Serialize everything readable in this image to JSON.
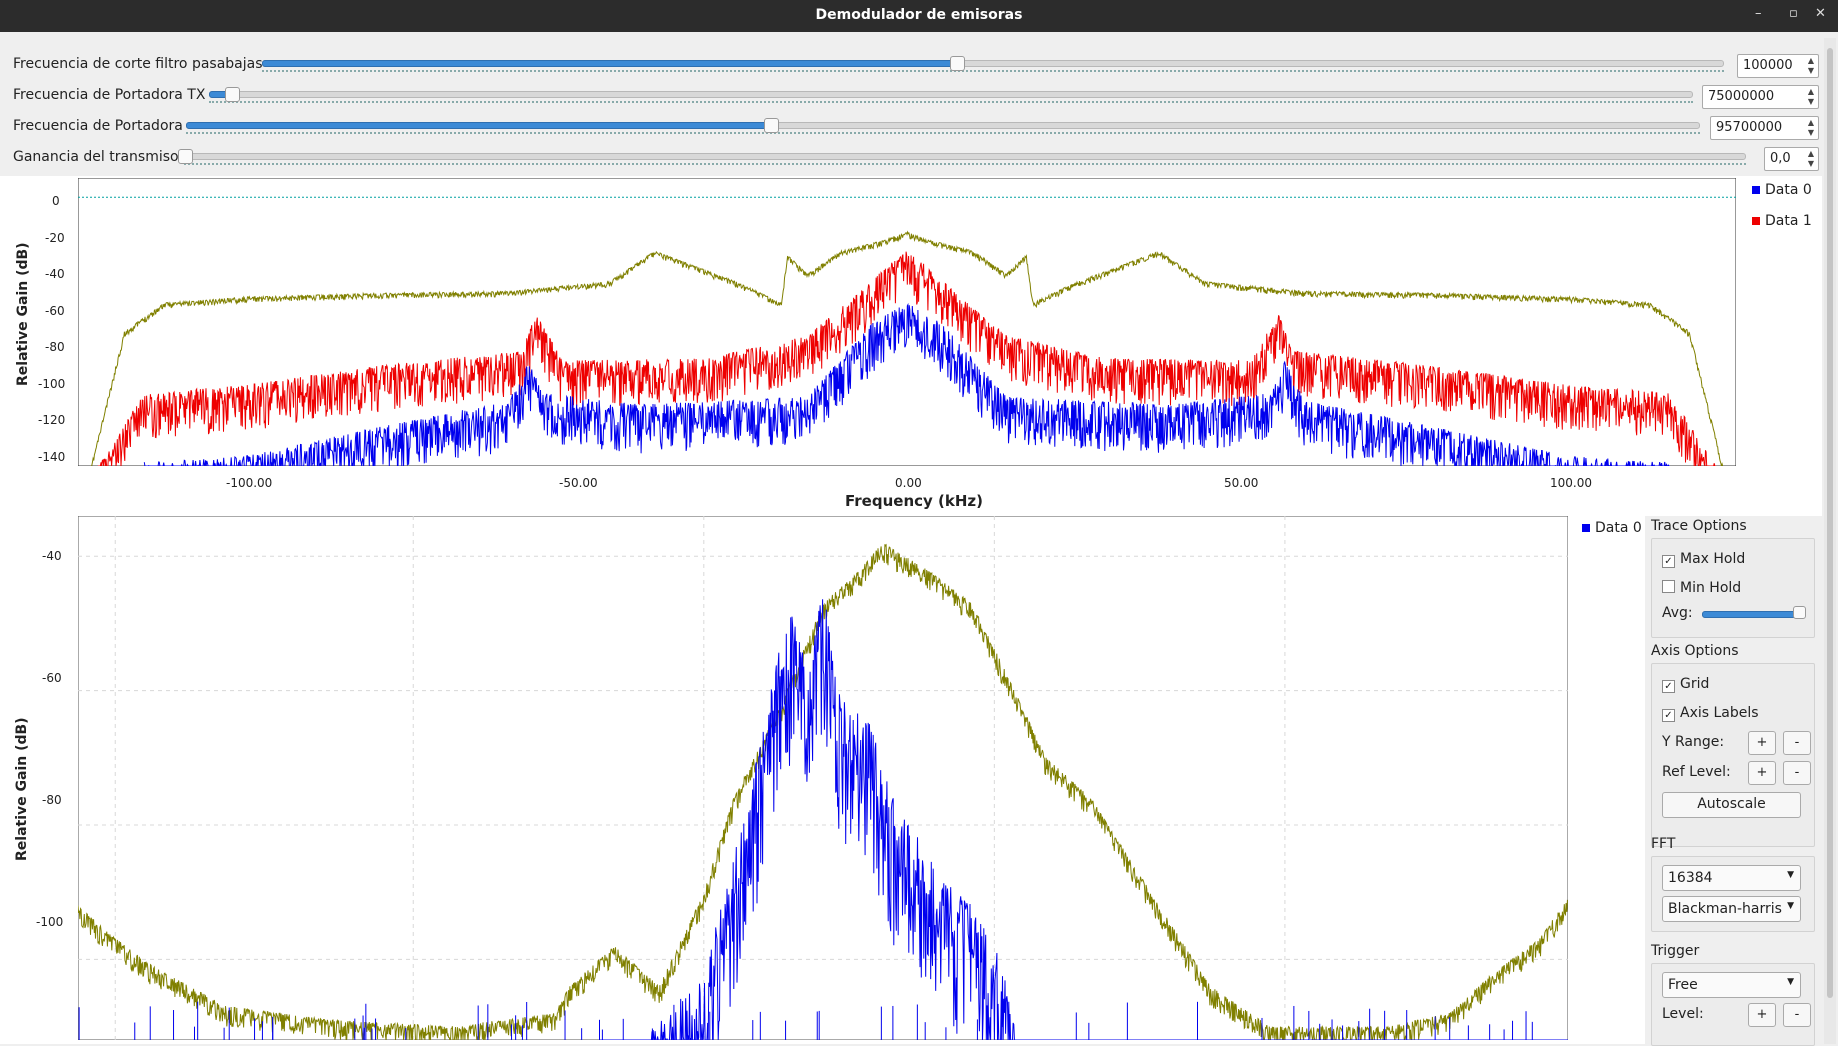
{
  "window": {
    "title": "Demodulador de emisoras",
    "controls": {
      "minimize": "–",
      "restore": "▫",
      "close": "✕"
    }
  },
  "controls": [
    {
      "label": "Frecuencia de corte filtro pasabajas",
      "value": "100000",
      "fraction": 0.475
    },
    {
      "label": "Frecuencia de Portadora TX",
      "value": "75000000",
      "fraction": 0.015
    },
    {
      "label": "Frecuencia de Portadora",
      "value": "95700000",
      "fraction": 0.386
    },
    {
      "label": "Ganancia del transmisor",
      "value": "0,0",
      "fraction": 0.0
    }
  ],
  "top_plot": {
    "ylabel": "Relative Gain (dB)",
    "xlabel": "Frequency (kHz)",
    "yticks": [
      "0",
      "-20",
      "-40",
      "-60",
      "-80",
      "-100",
      "-120",
      "-140"
    ],
    "xticks": [
      "-100.00",
      "-50.00",
      "0.00",
      "50.00",
      "100.00"
    ],
    "legend": [
      {
        "name": "Data 0",
        "color": "#0000ee"
      },
      {
        "name": "Data 1",
        "color": "#ee0000"
      }
    ]
  },
  "bottom_plot": {
    "ylabel": "Relative Gain (dB)",
    "yticks": [
      "-40",
      "-60",
      "-80",
      "-100"
    ],
    "legend": [
      {
        "name": "Data 0",
        "color": "#0000ee"
      }
    ]
  },
  "options": {
    "trace_title": "Trace Options",
    "max_hold": "Max Hold",
    "min_hold": "Min Hold",
    "avg": "Avg:",
    "avg_fraction": 0.95,
    "axis_title": "Axis Options",
    "grid": "Grid",
    "axis_labels": "Axis Labels",
    "y_range": "Y Range:",
    "ref_level": "Ref Level:",
    "plus": "+",
    "minus": "-",
    "autoscale": "Autoscale",
    "fft_title": "FFT",
    "fft_size": "16384",
    "window": "Blackman-harris",
    "trigger_title": "Trigger",
    "trigger_mode": "Free",
    "level": "Level:",
    "check": "✓"
  },
  "colors": {
    "data0": "#0000ee",
    "data1": "#ee0000",
    "maxhold": "#808000",
    "accent": "#3c8ad6",
    "refline": "#00a0a0"
  },
  "chart_data": [
    {
      "type": "line",
      "title": "",
      "xlabel": "Frequency (kHz)",
      "ylabel": "Relative Gain (dB)",
      "xlim": [
        -125,
        125
      ],
      "ylim": [
        -140,
        10
      ],
      "series": [
        {
          "name": "Max Hold",
          "x": [
            -123,
            -118,
            -112,
            -100,
            -80,
            -60,
            -45,
            -38,
            -25,
            -19,
            -18,
            -15,
            -10,
            -3,
            0,
            3,
            10,
            15,
            18,
            19,
            25,
            38,
            45,
            60,
            80,
            100,
            112,
            118,
            123
          ],
          "values": [
            -140,
            -70,
            -55,
            -52,
            -50,
            -49,
            -44,
            -28,
            -45,
            -55,
            -30,
            -40,
            -28,
            -22,
            -18,
            -22,
            -28,
            -40,
            -30,
            -55,
            -45,
            -28,
            -44,
            -49,
            -50,
            -52,
            -55,
            -70,
            -140
          ]
        },
        {
          "name": "Data 1",
          "x": [
            -122,
            -115,
            -100,
            -80,
            -58,
            -56,
            -52,
            -30,
            -15,
            -8,
            -3,
            0,
            3,
            8,
            15,
            30,
            52,
            56,
            58,
            80,
            100,
            115,
            122
          ],
          "values": [
            -140,
            -102,
            -98,
            -88,
            -80,
            -60,
            -85,
            -84,
            -72,
            -52,
            -36,
            -28,
            -36,
            -52,
            -72,
            -84,
            -85,
            -60,
            -80,
            -88,
            -98,
            -102,
            -140
          ]
        },
        {
          "name": "Data 0",
          "x": [
            -115,
            -100,
            -80,
            -60,
            -57,
            -55,
            -40,
            -15,
            -10,
            -5,
            0,
            5,
            10,
            15,
            40,
            55,
            57,
            60,
            80,
            100,
            115
          ],
          "values": [
            -138,
            -135,
            -120,
            -106,
            -85,
            -102,
            -108,
            -104,
            -84,
            -65,
            -55,
            -65,
            -84,
            -104,
            -108,
            -102,
            -85,
            -106,
            -120,
            -135,
            -138
          ]
        }
      ]
    },
    {
      "type": "line",
      "title": "",
      "xlabel": "",
      "ylabel": "Relative Gain (dB)",
      "xlim": [
        0,
        100
      ],
      "ylim": [
        -112,
        -34
      ],
      "series": [
        {
          "name": "Max Hold",
          "x": [
            0,
            2,
            5,
            10,
            17,
            25,
            32,
            33,
            36,
            39,
            42,
            44,
            47,
            50,
            52,
            54,
            57,
            60,
            62,
            65,
            68,
            72,
            76,
            80,
            88,
            92,
            95,
            98,
            100
          ],
          "values": [
            -92,
            -96,
            -101,
            -107,
            -109,
            -110,
            -108,
            -104,
            -98,
            -104,
            -90,
            -76,
            -63,
            -47,
            -43,
            -38,
            -42,
            -47,
            -56,
            -70,
            -76,
            -90,
            -104,
            -110,
            -110,
            -108,
            -102,
            -97,
            -91
          ]
        },
        {
          "name": "Data 0",
          "x": [
            35,
            38,
            42,
            44,
            46,
            47,
            48,
            49,
            50,
            51,
            53,
            55,
            56,
            58,
            60,
            62,
            63,
            64,
            66,
            70,
            100
          ],
          "values": [
            -112,
            -112,
            -102,
            -85,
            -66,
            -54,
            -48,
            -58,
            -44,
            -60,
            -64,
            -78,
            -80,
            -88,
            -92,
            -100,
            -112,
            -112,
            -112,
            -112,
            -112
          ]
        }
      ]
    }
  ]
}
